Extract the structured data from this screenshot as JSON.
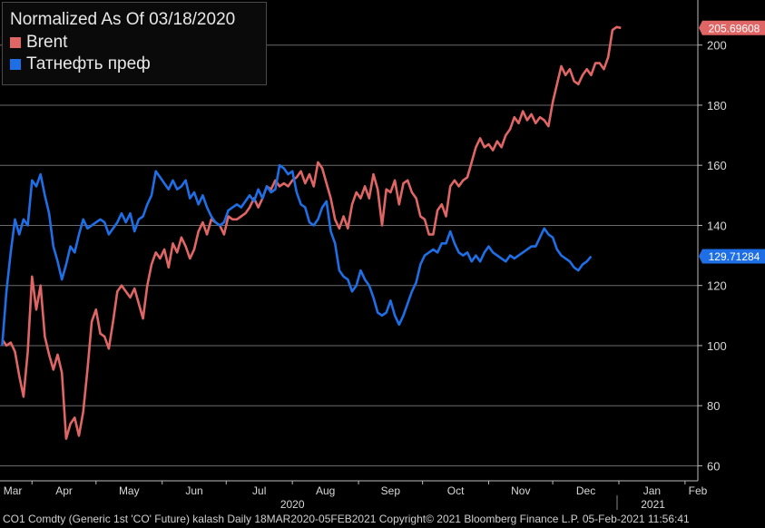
{
  "chart_data": {
    "type": "line",
    "title": "Normalized As Of 03/18/2020",
    "ylim": [
      55,
      215
    ],
    "yticks": [
      60,
      80,
      100,
      120,
      140,
      160,
      180,
      200
    ],
    "grid": true,
    "legend_position": "top-left",
    "x_month_labels": [
      "Mar",
      "Apr",
      "May",
      "Jun",
      "Jul",
      "Aug",
      "Sep",
      "Oct",
      "Nov",
      "Dec",
      "Jan",
      "Feb"
    ],
    "x_month_days": [
      0,
      14,
      44,
      75,
      105,
      136,
      167,
      197,
      228,
      258,
      289,
      320
    ],
    "x_year_labels": [
      {
        "label": "2020",
        "day": 136
      },
      {
        "label": "2021",
        "day": 305
      }
    ],
    "xlim_days": [
      -1,
      326
    ],
    "series": [
      {
        "name": "Brent",
        "color": "#e06666",
        "last_value_label": "205.69608",
        "last_value": 205.7,
        "points": [
          [
            0,
            102
          ],
          [
            2,
            100
          ],
          [
            4,
            101
          ],
          [
            6,
            98
          ],
          [
            8,
            90
          ],
          [
            10,
            83
          ],
          [
            12,
            98
          ],
          [
            14,
            123
          ],
          [
            16,
            112
          ],
          [
            18,
            120
          ],
          [
            20,
            103
          ],
          [
            22,
            97
          ],
          [
            24,
            92
          ],
          [
            26,
            97
          ],
          [
            28,
            91
          ],
          [
            30,
            69
          ],
          [
            32,
            74
          ],
          [
            34,
            76
          ],
          [
            36,
            70
          ],
          [
            38,
            78
          ],
          [
            40,
            92
          ],
          [
            42,
            108
          ],
          [
            44,
            112
          ],
          [
            46,
            104
          ],
          [
            48,
            103
          ],
          [
            50,
            99
          ],
          [
            52,
            108
          ],
          [
            54,
            118
          ],
          [
            56,
            120
          ],
          [
            58,
            118
          ],
          [
            60,
            116
          ],
          [
            62,
            119
          ],
          [
            64,
            114
          ],
          [
            66,
            109
          ],
          [
            68,
            120
          ],
          [
            70,
            127
          ],
          [
            72,
            131
          ],
          [
            74,
            129
          ],
          [
            76,
            132
          ],
          [
            78,
            126
          ],
          [
            80,
            134
          ],
          [
            82,
            131
          ],
          [
            84,
            136
          ],
          [
            86,
            133
          ],
          [
            88,
            129
          ],
          [
            90,
            132
          ],
          [
            92,
            138
          ],
          [
            94,
            141
          ],
          [
            96,
            137
          ],
          [
            98,
            142
          ],
          [
            100,
            141
          ],
          [
            102,
            140
          ],
          [
            104,
            137
          ],
          [
            106,
            143
          ],
          [
            108,
            142
          ],
          [
            110,
            142
          ],
          [
            112,
            143
          ],
          [
            114,
            144
          ],
          [
            116,
            146
          ],
          [
            118,
            149
          ],
          [
            120,
            146
          ],
          [
            122,
            149
          ],
          [
            124,
            153
          ],
          [
            126,
            152
          ],
          [
            128,
            155
          ],
          [
            130,
            153
          ],
          [
            132,
            154
          ],
          [
            134,
            153
          ],
          [
            136,
            155
          ],
          [
            138,
            156
          ],
          [
            140,
            158
          ],
          [
            142,
            154
          ],
          [
            144,
            157
          ],
          [
            146,
            153
          ],
          [
            148,
            161
          ],
          [
            150,
            159
          ],
          [
            152,
            154
          ],
          [
            154,
            149
          ],
          [
            156,
            142
          ],
          [
            158,
            139
          ],
          [
            160,
            143
          ],
          [
            162,
            139
          ],
          [
            164,
            147
          ],
          [
            166,
            151
          ],
          [
            168,
            149
          ],
          [
            170,
            153
          ],
          [
            172,
            149
          ],
          [
            174,
            157
          ],
          [
            176,
            152
          ],
          [
            178,
            140
          ],
          [
            180,
            152
          ],
          [
            182,
            151
          ],
          [
            184,
            155
          ],
          [
            186,
            147
          ],
          [
            188,
            154
          ],
          [
            190,
            155
          ],
          [
            192,
            151
          ],
          [
            194,
            149
          ],
          [
            196,
            143
          ],
          [
            198,
            142
          ],
          [
            200,
            137
          ],
          [
            202,
            137
          ],
          [
            204,
            145
          ],
          [
            206,
            147
          ],
          [
            208,
            143
          ],
          [
            210,
            153
          ],
          [
            212,
            155
          ],
          [
            214,
            153
          ],
          [
            216,
            155
          ],
          [
            218,
            156
          ],
          [
            220,
            161
          ],
          [
            222,
            166
          ],
          [
            224,
            169
          ],
          [
            226,
            166
          ],
          [
            228,
            167
          ],
          [
            230,
            165
          ],
          [
            232,
            168
          ],
          [
            234,
            166
          ],
          [
            236,
            170
          ],
          [
            238,
            172
          ],
          [
            240,
            176
          ],
          [
            242,
            174
          ],
          [
            244,
            178
          ],
          [
            246,
            175
          ],
          [
            248,
            177
          ],
          [
            250,
            174
          ],
          [
            252,
            176
          ],
          [
            254,
            175
          ],
          [
            256,
            173
          ],
          [
            258,
            181
          ],
          [
            260,
            187
          ],
          [
            262,
            193
          ],
          [
            264,
            190
          ],
          [
            266,
            192
          ],
          [
            268,
            188
          ],
          [
            270,
            187
          ],
          [
            272,
            190
          ],
          [
            274,
            192
          ],
          [
            276,
            190
          ],
          [
            278,
            194
          ],
          [
            280,
            194
          ],
          [
            282,
            192
          ],
          [
            284,
            196
          ],
          [
            286,
            205
          ],
          [
            288,
            206
          ],
          [
            290,
            205.7
          ]
        ]
      },
      {
        "name": "Татнефть преф",
        "color": "#1e6fe6",
        "last_value_label": "129.71284",
        "last_value": 129.7,
        "points": [
          [
            0,
            100
          ],
          [
            2,
            118
          ],
          [
            4,
            131
          ],
          [
            6,
            142
          ],
          [
            8,
            137
          ],
          [
            10,
            142
          ],
          [
            12,
            140
          ],
          [
            14,
            155
          ],
          [
            16,
            153
          ],
          [
            18,
            157
          ],
          [
            20,
            150
          ],
          [
            22,
            144
          ],
          [
            24,
            133
          ],
          [
            26,
            128
          ],
          [
            28,
            122
          ],
          [
            30,
            127
          ],
          [
            32,
            133
          ],
          [
            34,
            131
          ],
          [
            36,
            137
          ],
          [
            38,
            142
          ],
          [
            40,
            139
          ],
          [
            42,
            140
          ],
          [
            44,
            141
          ],
          [
            46,
            142
          ],
          [
            48,
            141
          ],
          [
            50,
            137
          ],
          [
            52,
            139
          ],
          [
            54,
            141
          ],
          [
            56,
            144
          ],
          [
            58,
            141
          ],
          [
            60,
            144
          ],
          [
            62,
            138
          ],
          [
            64,
            142
          ],
          [
            66,
            143
          ],
          [
            68,
            147
          ],
          [
            70,
            150
          ],
          [
            72,
            158
          ],
          [
            74,
            156
          ],
          [
            76,
            154
          ],
          [
            78,
            152
          ],
          [
            80,
            155
          ],
          [
            82,
            152
          ],
          [
            84,
            153
          ],
          [
            86,
            155
          ],
          [
            88,
            149
          ],
          [
            90,
            151
          ],
          [
            92,
            147
          ],
          [
            94,
            150
          ],
          [
            96,
            146
          ],
          [
            98,
            143
          ],
          [
            100,
            141
          ],
          [
            102,
            140
          ],
          [
            104,
            141
          ],
          [
            106,
            145
          ],
          [
            108,
            146
          ],
          [
            110,
            147
          ],
          [
            112,
            146
          ],
          [
            114,
            148
          ],
          [
            116,
            150
          ],
          [
            118,
            148
          ],
          [
            120,
            152
          ],
          [
            122,
            149
          ],
          [
            124,
            153
          ],
          [
            126,
            151
          ],
          [
            128,
            152
          ],
          [
            130,
            160
          ],
          [
            132,
            159
          ],
          [
            134,
            157
          ],
          [
            136,
            158
          ],
          [
            138,
            151
          ],
          [
            140,
            147
          ],
          [
            142,
            146
          ],
          [
            144,
            141
          ],
          [
            146,
            140
          ],
          [
            148,
            142
          ],
          [
            150,
            146
          ],
          [
            152,
            148
          ],
          [
            154,
            138
          ],
          [
            156,
            134
          ],
          [
            158,
            125
          ],
          [
            160,
            123
          ],
          [
            162,
            122
          ],
          [
            164,
            118
          ],
          [
            166,
            120
          ],
          [
            168,
            125
          ],
          [
            170,
            122
          ],
          [
            172,
            120
          ],
          [
            174,
            116
          ],
          [
            176,
            111
          ],
          [
            178,
            110
          ],
          [
            180,
            111
          ],
          [
            182,
            115
          ],
          [
            184,
            110
          ],
          [
            186,
            107
          ],
          [
            188,
            110
          ],
          [
            190,
            114
          ],
          [
            192,
            118
          ],
          [
            194,
            121
          ],
          [
            196,
            127
          ],
          [
            198,
            130
          ],
          [
            200,
            131
          ],
          [
            202,
            132
          ],
          [
            204,
            131
          ],
          [
            206,
            134
          ],
          [
            208,
            134
          ],
          [
            210,
            138
          ],
          [
            212,
            134
          ],
          [
            214,
            131
          ],
          [
            216,
            130
          ],
          [
            218,
            131
          ],
          [
            220,
            128
          ],
          [
            222,
            130
          ],
          [
            224,
            128
          ],
          [
            226,
            131
          ],
          [
            228,
            133
          ],
          [
            230,
            131
          ],
          [
            232,
            130
          ],
          [
            234,
            129
          ],
          [
            236,
            128
          ],
          [
            238,
            130
          ],
          [
            240,
            129
          ],
          [
            242,
            130
          ],
          [
            244,
            131
          ],
          [
            246,
            132
          ],
          [
            248,
            133
          ],
          [
            250,
            133
          ],
          [
            252,
            136
          ],
          [
            254,
            139
          ],
          [
            256,
            137
          ],
          [
            258,
            136
          ],
          [
            260,
            132
          ],
          [
            262,
            130
          ],
          [
            264,
            129
          ],
          [
            266,
            128
          ],
          [
            268,
            126
          ],
          [
            270,
            125
          ],
          [
            272,
            127
          ],
          [
            274,
            128
          ],
          [
            276,
            129.7
          ]
        ]
      }
    ]
  },
  "footer": {
    "text": "CO1 Comdty (Generic 1st 'CO' Future) kalash  Daily 18MAR2020-05FEB2021  Copyright© 2021 Bloomberg Finance L.P.  05-Feb-2021 11:56:41"
  }
}
